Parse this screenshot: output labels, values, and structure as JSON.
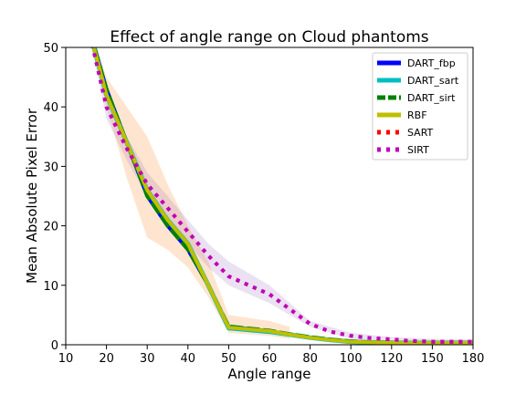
{
  "chart_data": {
    "type": "line",
    "title": "Effect of angle range on Cloud phantoms",
    "xlabel": "Angle range",
    "ylabel": "Mean Absolute Pixel Error",
    "xlim": [
      10,
      180
    ],
    "ylim": [
      0,
      50
    ],
    "x_ticks": [
      10,
      20,
      30,
      40,
      50,
      60,
      80,
      100,
      120,
      150,
      180
    ],
    "y_ticks": [
      0,
      10,
      20,
      30,
      40,
      50
    ],
    "x": [
      15,
      20,
      25,
      30,
      35,
      40,
      45,
      50,
      60,
      70,
      80,
      90,
      100,
      110,
      120,
      130,
      140,
      150,
      160,
      170,
      180
    ],
    "series": [
      {
        "name": "DART_fbp",
        "color": "#0000ff",
        "style": "solid",
        "values": [
          55,
          43,
          34,
          25,
          20,
          16,
          10,
          3.0,
          2.3,
          1.7,
          1.2,
          0.8,
          0.5,
          0.4,
          0.35,
          0.3,
          0.3,
          0.3,
          0.3,
          0.3,
          0.3
        ]
      },
      {
        "name": "DART_sart",
        "color": "#00bfbf",
        "style": "solid",
        "values": [
          55,
          42,
          34,
          26,
          21,
          17,
          10,
          2.8,
          2.2,
          1.7,
          1.2,
          0.8,
          0.5,
          0.4,
          0.35,
          0.3,
          0.3,
          0.3,
          0.3,
          0.3,
          0.3
        ]
      },
      {
        "name": "DART_sirt",
        "color": "#008000",
        "style": "dashed",
        "values": [
          55,
          43,
          34,
          25,
          20,
          16,
          10,
          3.1,
          2.4,
          1.8,
          1.3,
          0.9,
          0.6,
          0.4,
          0.35,
          0.3,
          0.3,
          0.3,
          0.3,
          0.3,
          0.3
        ]
      },
      {
        "name": "RBF",
        "color": "#bfbf00",
        "style": "solid",
        "values": [
          55,
          42,
          34,
          26,
          21,
          17,
          10,
          2.9,
          2.3,
          1.7,
          1.2,
          0.8,
          0.5,
          0.4,
          0.35,
          0.3,
          0.3,
          0.3,
          0.3,
          0.3,
          0.3
        ]
      },
      {
        "name": "SART",
        "color": "#ff0000",
        "style": "dotted",
        "values": [
          55,
          40,
          33,
          27,
          23,
          19,
          15,
          11.5,
          8.5,
          6,
          3.5,
          2.2,
          1.5,
          1.1,
          0.9,
          0.7,
          0.6,
          0.5,
          0.5,
          0.5,
          0.5
        ]
      },
      {
        "name": "SIRT",
        "color": "#bf00bf",
        "style": "dotted",
        "values": [
          55,
          40,
          33,
          27,
          23,
          19,
          15,
          11.5,
          8.5,
          6,
          3.5,
          2.2,
          1.5,
          1.1,
          0.9,
          0.7,
          0.6,
          0.5,
          0.5,
          0.5,
          0.5
        ]
      }
    ],
    "bands": [
      {
        "color": "#ff7f0e",
        "x": [
          15,
          20,
          25,
          30,
          35,
          40,
          45,
          50,
          60,
          70
        ],
        "upper": [
          55,
          45,
          40,
          35,
          27,
          20,
          14,
          5,
          4,
          3
        ],
        "lower": [
          55,
          40,
          28,
          18,
          16,
          13,
          8,
          2,
          1.5,
          1
        ]
      },
      {
        "color": "#9467bd",
        "x": [
          15,
          20,
          25,
          30,
          35,
          40,
          45,
          50,
          60,
          70,
          80,
          100,
          120,
          150,
          180
        ],
        "upper": [
          55,
          42,
          35,
          29,
          25,
          21,
          17,
          14,
          10,
          7,
          4,
          2,
          1.3,
          1.0,
          0.9
        ],
        "lower": [
          55,
          38,
          31,
          25,
          21,
          17,
          13,
          10,
          7,
          5,
          3,
          1.0,
          0.6,
          0.3,
          0.2
        ]
      }
    ],
    "legend_position": "top-right",
    "grid": false
  }
}
